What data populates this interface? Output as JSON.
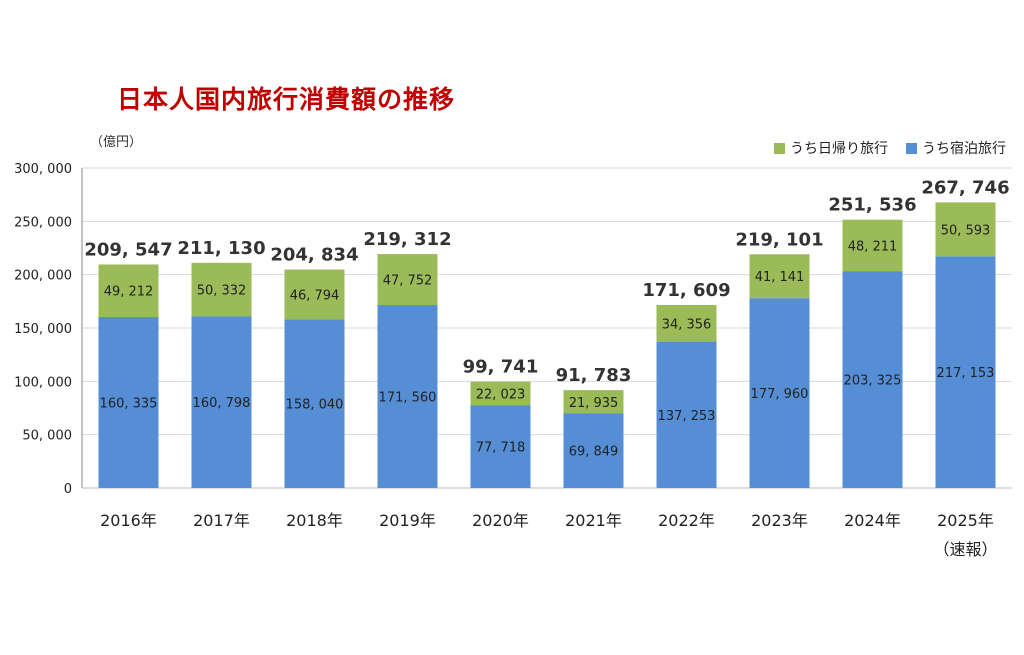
{
  "chart_data": {
    "type": "bar",
    "stacked": true,
    "title": "日本人国内旅行消費額の推移",
    "ylabel": "（億円）",
    "xlabel": "",
    "ylim": [
      0,
      300000
    ],
    "yticks": [
      0,
      50000,
      100000,
      150000,
      200000,
      250000,
      300000
    ],
    "grid": true,
    "legend_position": "top-right",
    "categories": [
      "2016年",
      "2017年",
      "2018年",
      "2019年",
      "2020年",
      "2021年",
      "2022年",
      "2023年",
      "2024年",
      "2025年"
    ],
    "category_notes": [
      "",
      "",
      "",
      "",
      "",
      "",
      "",
      "",
      "",
      "（速報）"
    ],
    "series": [
      {
        "name": "うち宿泊旅行",
        "color": "#558ed5",
        "values": [
          160335,
          160798,
          158040,
          171560,
          77718,
          69849,
          137253,
          177960,
          203325,
          217153
        ]
      },
      {
        "name": "うち日帰り旅行",
        "color": "#9bbb59",
        "values": [
          49212,
          50332,
          46794,
          47752,
          22023,
          21935,
          34356,
          41141,
          48211,
          50593
        ]
      }
    ],
    "totals": [
      209547,
      211130,
      204834,
      219312,
      99741,
      91783,
      171609,
      219101,
      251536,
      267746
    ]
  }
}
